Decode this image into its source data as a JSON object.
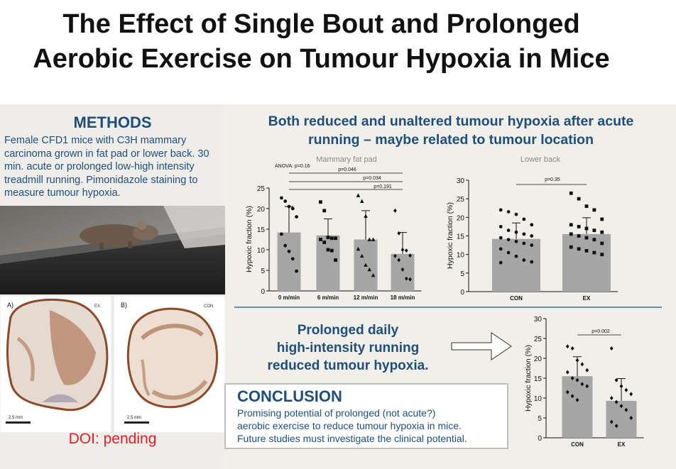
{
  "title_line1": "The Effect of Single Bout and Prolonged",
  "title_line2": "Aerobic Exercise on Tumour Hypoxia in Mice",
  "methods": {
    "heading": "METHODS",
    "text": "Female CFD1 mice with C3H mammary carcinoma grown in fat pad or lower back. 30 min. acute or prolonged low-high intensity treadmill running. Pimonidazole staining to measure tumour hypoxia."
  },
  "sections": {
    "label_a": "A)",
    "label_b": "B)",
    "tag_a": "EX",
    "tag_b": "CON",
    "scale_a": "2.5 mm",
    "scale_b": "2.5 mm"
  },
  "doi": "DOI: pending",
  "headline_line1": "Both reduced and unaltered tumour hypoxia after acute",
  "headline_line2": "running – maybe related to tumour location",
  "prolonged": {
    "line1": "Prolonged daily",
    "line2": "high-intensity running",
    "line3": "reduced tumour hypoxia."
  },
  "conclusion": {
    "heading": "CONCLUSION",
    "line1": "Promising potential of prolonged (not acute?)",
    "line2": "aerobic exercise to reduce tumour hypoxia in mice.",
    "line3": "Future studies must investigate the clinical potential."
  },
  "colors": {
    "bar": "#a6a6a6",
    "accent": "#1f4e79",
    "doi": "#e02020"
  },
  "chart_data": [
    {
      "type": "bar",
      "title": "Mammary fat pad",
      "ylabel": "Hypoxic fraction (%)",
      "ylim": [
        0,
        25
      ],
      "yticks": [
        0,
        5,
        10,
        15,
        20,
        25
      ],
      "categories": [
        "0 m/min",
        "6 m/min",
        "12 m/min",
        "18 m/min"
      ],
      "values": [
        14.2,
        13.5,
        12.5,
        9.0
      ],
      "error": [
        6.3,
        4.0,
        7.0,
        5.2
      ],
      "points": [
        [
          22.6,
          21.8,
          20.5,
          20.0,
          18.0,
          13.8,
          11.0,
          9.6,
          7.8,
          4.8
        ],
        [
          21.6,
          19.5,
          13.0,
          12.8,
          12.8,
          12.5,
          11.8,
          10.0,
          9.8,
          7.5
        ],
        [
          23.2,
          21.8,
          18.2,
          12.5,
          12.5,
          10.2,
          8.5,
          6.3,
          5.2,
          3.8
        ],
        [
          19.5,
          14.0,
          10.0,
          9.8,
          8.6,
          8.5,
          7.5,
          5.2,
          3.0,
          2.8
        ]
      ],
      "markers": [
        "circle",
        "square",
        "triangle",
        "diamond"
      ],
      "annotations": [
        "ANOVA: p=0.16",
        "p=0.046",
        "p=0.034",
        "p=0.191"
      ]
    },
    {
      "type": "bar",
      "title": "Lower back",
      "ylabel": "Hypoxic fraction (%)",
      "ylim": [
        0,
        30
      ],
      "yticks": [
        0,
        5,
        10,
        15,
        20,
        25,
        30
      ],
      "categories": [
        "CON",
        "EX"
      ],
      "values": [
        14.2,
        15.5
      ],
      "error": [
        4.3,
        4.4
      ],
      "points": [
        [
          22.0,
          21.5,
          20.8,
          19.5,
          18.0,
          17.5,
          16.5,
          16.0,
          15.5,
          15.0,
          14.5,
          14.0,
          13.5,
          13.0,
          12.5,
          11.5,
          10.5,
          9.5,
          8.5,
          8.0,
          7.8
        ],
        [
          26.5,
          25.0,
          23.0,
          22.0,
          19.5,
          18.0,
          17.5,
          17.0,
          16.5,
          16.0,
          15.5,
          15.0,
          14.5,
          14.0,
          13.0,
          12.0,
          11.5,
          11.0,
          10.5,
          10.0
        ]
      ],
      "markers": [
        "circle",
        "square"
      ],
      "annotations": [
        "p=0.35"
      ]
    },
    {
      "type": "bar",
      "ylabel": "Hypoxic fraction (%)",
      "ylim": [
        0,
        30
      ],
      "yticks": [
        0,
        5,
        10,
        15,
        20,
        25,
        30
      ],
      "categories": [
        "CON",
        "EX"
      ],
      "values": [
        15.5,
        9.3
      ],
      "error": [
        4.9,
        5.6
      ],
      "points": [
        [
          23.0,
          22.5,
          19.5,
          18.5,
          17.0,
          16.5,
          15.0,
          14.5,
          13.5,
          13.0,
          11.5,
          10.5,
          9.5
        ],
        [
          22.5,
          14.5,
          13.0,
          12.0,
          11.0,
          10.0,
          9.0,
          8.0,
          7.0,
          5.0,
          4.0,
          3.0
        ]
      ],
      "markers": [
        "diamond",
        "diamond"
      ],
      "annotations": [
        "p=0.002"
      ]
    }
  ]
}
